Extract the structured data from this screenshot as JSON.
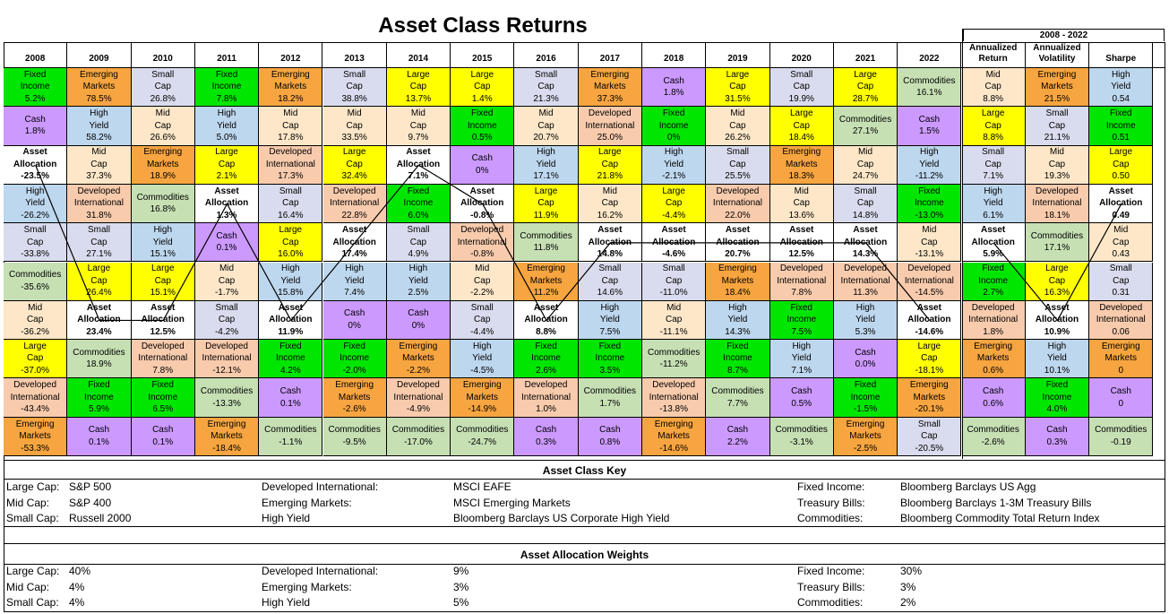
{
  "title": "Asset Class Returns",
  "period_label": "2008 - 2022",
  "years": [
    "2008",
    "2009",
    "2010",
    "2011",
    "2012",
    "2013",
    "2014",
    "2015",
    "2016",
    "2017",
    "2018",
    "2019",
    "2020",
    "2021",
    "2022"
  ],
  "summary_headers": [
    "Annualized Return",
    "Annualized Volatility",
    "Sharpe"
  ],
  "colors": {
    "Large Cap": "#ffff00",
    "Mid Cap": "#fde7c8",
    "Small Cap": "#d9dcee",
    "Developed International": "#f8cbad",
    "Emerging Markets": "#f7a540",
    "High Yield": "#bdd7ee",
    "Fixed Income": "#00e600",
    "Cash": "#cc99ff",
    "Commodities": "#c6e0b4",
    "Asset Allocation": "#ffffff"
  },
  "chart_data": {
    "type": "table",
    "title": "Asset Class Returns",
    "columns": [
      [
        [
          "Fixed Income",
          "5.2%"
        ],
        [
          "Cash",
          "1.8%"
        ],
        [
          "Asset Allocation",
          "-23.5%"
        ],
        [
          "High Yield",
          "-26.2%"
        ],
        [
          "Small Cap",
          "-33.8%"
        ],
        [
          "Commodities",
          "-35.6%"
        ],
        [
          "Mid Cap",
          "-36.2%"
        ],
        [
          "Large Cap",
          "-37.0%"
        ],
        [
          "Developed International",
          "-43.4%"
        ],
        [
          "Emerging Markets",
          "-53.3%"
        ]
      ],
      [
        [
          "Emerging Markets",
          "78.5%"
        ],
        [
          "High Yield",
          "58.2%"
        ],
        [
          "Mid Cap",
          "37.3%"
        ],
        [
          "Developed International",
          "31.8%"
        ],
        [
          "Small Cap",
          "27.1%"
        ],
        [
          "Large Cap",
          "26.4%"
        ],
        [
          "Asset Allocation",
          "23.4%"
        ],
        [
          "Commodities",
          "18.9%"
        ],
        [
          "Fixed Income",
          "5.9%"
        ],
        [
          "Cash",
          "0.1%"
        ]
      ],
      [
        [
          "Small Cap",
          "26.8%"
        ],
        [
          "Mid Cap",
          "26.6%"
        ],
        [
          "Emerging Markets",
          "18.9%"
        ],
        [
          "Commodities",
          "16.8%"
        ],
        [
          "High Yield",
          "15.1%"
        ],
        [
          "Large Cap",
          "15.1%"
        ],
        [
          "Asset Allocation",
          "12.5%"
        ],
        [
          "Developed International",
          "7.8%"
        ],
        [
          "Fixed Income",
          "6.5%"
        ],
        [
          "Cash",
          "0.1%"
        ]
      ],
      [
        [
          "Fixed Income",
          "7.8%"
        ],
        [
          "High Yield",
          "5.0%"
        ],
        [
          "Large Cap",
          "2.1%"
        ],
        [
          "Asset Allocation",
          "1.3%"
        ],
        [
          "Cash",
          "0.1%"
        ],
        [
          "Mid Cap",
          "-1.7%"
        ],
        [
          "Small Cap",
          "-4.2%"
        ],
        [
          "Developed International",
          "-12.1%"
        ],
        [
          "Commodities",
          "-13.3%"
        ],
        [
          "Emerging Markets",
          "-18.4%"
        ]
      ],
      [
        [
          "Emerging Markets",
          "18.2%"
        ],
        [
          "Mid Cap",
          "17.8%"
        ],
        [
          "Developed International",
          "17.3%"
        ],
        [
          "Small Cap",
          "16.4%"
        ],
        [
          "Large Cap",
          "16.0%"
        ],
        [
          "High Yield",
          "15.8%"
        ],
        [
          "Asset Allocation",
          "11.9%"
        ],
        [
          "Fixed Income",
          "4.2%"
        ],
        [
          "Cash",
          "0.1%"
        ],
        [
          "Commodities",
          "-1.1%"
        ]
      ],
      [
        [
          "Small Cap",
          "38.8%"
        ],
        [
          "Mid Cap",
          "33.5%"
        ],
        [
          "Large Cap",
          "32.4%"
        ],
        [
          "Developed International",
          "22.8%"
        ],
        [
          "Asset Allocation",
          "17.4%"
        ],
        [
          "High Yield",
          "7.4%"
        ],
        [
          "Cash",
          "0%"
        ],
        [
          "Fixed Income",
          "-2.0%"
        ],
        [
          "Emerging Markets",
          "-2.6%"
        ],
        [
          "Commodities",
          "-9.5%"
        ]
      ],
      [
        [
          "Large Cap",
          "13.7%"
        ],
        [
          "Mid Cap",
          "9.7%"
        ],
        [
          "Asset Allocation",
          "7.1%"
        ],
        [
          "Fixed Income",
          "6.0%"
        ],
        [
          "Small Cap",
          "4.9%"
        ],
        [
          "High Yield",
          "2.5%"
        ],
        [
          "Cash",
          "0%"
        ],
        [
          "Emerging Markets",
          "-2.2%"
        ],
        [
          "Developed International",
          "-4.9%"
        ],
        [
          "Commodities",
          "-17.0%"
        ]
      ],
      [
        [
          "Large Cap",
          "1.4%"
        ],
        [
          "Fixed Income",
          "0.5%"
        ],
        [
          "Cash",
          "0%"
        ],
        [
          "Asset Allocation",
          "-0.8%"
        ],
        [
          "Developed International",
          "-0.8%"
        ],
        [
          "Mid Cap",
          "-2.2%"
        ],
        [
          "Small Cap",
          "-4.4%"
        ],
        [
          "High Yield",
          "-4.5%"
        ],
        [
          "Emerging Markets",
          "-14.9%"
        ],
        [
          "Commodities",
          "-24.7%"
        ]
      ],
      [
        [
          "Small Cap",
          "21.3%"
        ],
        [
          "Mid Cap",
          "20.7%"
        ],
        [
          "High Yield",
          "17.1%"
        ],
        [
          "Large Cap",
          "11.9%"
        ],
        [
          "Commodities",
          "11.8%"
        ],
        [
          "Emerging Markets",
          "11.2%"
        ],
        [
          "Asset Allocation",
          "8.8%"
        ],
        [
          "Fixed Income",
          "2.6%"
        ],
        [
          "Developed International",
          "1.0%"
        ],
        [
          "Cash",
          "0.3%"
        ]
      ],
      [
        [
          "Emerging Markets",
          "37.3%"
        ],
        [
          "Developed International",
          "25.0%"
        ],
        [
          "Large Cap",
          "21.8%"
        ],
        [
          "Mid Cap",
          "16.2%"
        ],
        [
          "Asset Allocation",
          "14.8%"
        ],
        [
          "Small Cap",
          "14.6%"
        ],
        [
          "High Yield",
          "7.5%"
        ],
        [
          "Fixed Income",
          "3.5%"
        ],
        [
          "Commodities",
          "1.7%"
        ],
        [
          "Cash",
          "0.8%"
        ]
      ],
      [
        [
          "Cash",
          "1.8%"
        ],
        [
          "Fixed Income",
          "0%"
        ],
        [
          "High Yield",
          "-2.1%"
        ],
        [
          "Large Cap",
          "-4.4%"
        ],
        [
          "Asset Allocation",
          "-4.6%"
        ],
        [
          "Small Cap",
          "-11.0%"
        ],
        [
          "Mid Cap",
          "-11.1%"
        ],
        [
          "Commodities",
          "-11.2%"
        ],
        [
          "Developed International",
          "-13.8%"
        ],
        [
          "Emerging Markets",
          "-14.6%"
        ]
      ],
      [
        [
          "Large Cap",
          "31.5%"
        ],
        [
          "Mid Cap",
          "26.2%"
        ],
        [
          "Small Cap",
          "25.5%"
        ],
        [
          "Developed International",
          "22.0%"
        ],
        [
          "Asset Allocation",
          "20.7%"
        ],
        [
          "Emerging Markets",
          "18.4%"
        ],
        [
          "High Yield",
          "14.3%"
        ],
        [
          "Fixed Income",
          "8.7%"
        ],
        [
          "Commodities",
          "7.7%"
        ],
        [
          "Cash",
          "2.2%"
        ]
      ],
      [
        [
          "Small Cap",
          "19.9%"
        ],
        [
          "Large Cap",
          "18.4%"
        ],
        [
          "Emerging Markets",
          "18.3%"
        ],
        [
          "Mid Cap",
          "13.6%"
        ],
        [
          "Asset Allocation",
          "12.5%"
        ],
        [
          "Developed International",
          "7.8%"
        ],
        [
          "Fixed Income",
          "7.5%"
        ],
        [
          "High Yield",
          "7.1%"
        ],
        [
          "Cash",
          "0.5%"
        ],
        [
          "Commodities",
          "-3.1%"
        ]
      ],
      [
        [
          "Large Cap",
          "28.7%"
        ],
        [
          "Commodities",
          "27.1%"
        ],
        [
          "Mid Cap",
          "24.7%"
        ],
        [
          "Small Cap",
          "14.8%"
        ],
        [
          "Asset Allocation",
          "14.3%"
        ],
        [
          "Developed International",
          "11.3%"
        ],
        [
          "High Yield",
          "5.3%"
        ],
        [
          "Cash",
          "0.0%"
        ],
        [
          "Fixed Income",
          "-1.5%"
        ],
        [
          "Emerging Markets",
          "-2.5%"
        ]
      ],
      [
        [
          "Commodities",
          "16.1%"
        ],
        [
          "Cash",
          "1.5%"
        ],
        [
          "High Yield",
          "-11.2%"
        ],
        [
          "Fixed Income",
          "-13.0%"
        ],
        [
          "Mid Cap",
          "-13.1%"
        ],
        [
          "Developed International",
          "-14.5%"
        ],
        [
          "Asset Allocation",
          "-14.6%"
        ],
        [
          "Large Cap",
          "-18.1%"
        ],
        [
          "Emerging Markets",
          "-20.1%"
        ],
        [
          "Small Cap",
          "-20.5%"
        ]
      ],
      [
        [
          "Mid Cap",
          "8.8%"
        ],
        [
          "Large Cap",
          "8.8%"
        ],
        [
          "Small Cap",
          "7.1%"
        ],
        [
          "High Yield",
          "6.1%"
        ],
        [
          "Asset Allocation",
          "5.9%"
        ],
        [
          "Fixed Income",
          "2.7%"
        ],
        [
          "Developed International",
          "1.8%"
        ],
        [
          "Emerging Markets",
          "0.6%"
        ],
        [
          "Cash",
          "0.6%"
        ],
        [
          "Commodities",
          "-2.6%"
        ]
      ],
      [
        [
          "Emerging Markets",
          "21.5%"
        ],
        [
          "Small Cap",
          "21.1%"
        ],
        [
          "Mid Cap",
          "19.3%"
        ],
        [
          "Developed International",
          "18.1%"
        ],
        [
          "Commodities",
          "17.1%"
        ],
        [
          "Large Cap",
          "16.3%"
        ],
        [
          "Asset Allocation",
          "10.9%"
        ],
        [
          "High Yield",
          "10.1%"
        ],
        [
          "Fixed Income",
          "4.0%"
        ],
        [
          "Cash",
          "0.3%"
        ]
      ],
      [
        [
          "High Yield",
          "0.54"
        ],
        [
          "Fixed Income",
          "0.51"
        ],
        [
          "Large Cap",
          "0.50"
        ],
        [
          "Asset Allocation",
          "0.49"
        ],
        [
          "Mid Cap",
          "0.43"
        ],
        [
          "Small Cap",
          "0.31"
        ],
        [
          "Developed International",
          "0.06"
        ],
        [
          "Emerging Markets",
          "0"
        ],
        [
          "Cash",
          "0"
        ],
        [
          "Commodities",
          "-0.19"
        ]
      ]
    ]
  },
  "key": {
    "title": "Asset Class Key",
    "rows": [
      [
        "Large Cap:",
        "S&P 500",
        "Developed International:",
        "MSCI EAFE",
        "Fixed Income:",
        "Bloomberg Barclays US Agg"
      ],
      [
        "Mid Cap:",
        "S&P 400",
        "Emerging Markets:",
        "MSCI Emerging Markets",
        "Treasury Bills:",
        "Bloomberg Barclays 1-3M Treasury Bills"
      ],
      [
        "Small Cap:",
        "Russell 2000",
        "High Yield",
        "Bloomberg Barclays US Corporate High Yield",
        "Commodities:",
        "Bloomberg Commodity Total Return Index"
      ]
    ]
  },
  "weights": {
    "title": "Asset Allocation Weights",
    "rows": [
      [
        "Large Cap:",
        "40%",
        "Developed International:",
        "9%",
        "Fixed Income:",
        "30%"
      ],
      [
        "Mid Cap:",
        "4%",
        "Emerging Markets:",
        "3%",
        "Treasury Bills:",
        "3%"
      ],
      [
        "Small Cap:",
        "4%",
        "High Yield",
        "5%",
        "Commodities:",
        "2%"
      ]
    ]
  }
}
